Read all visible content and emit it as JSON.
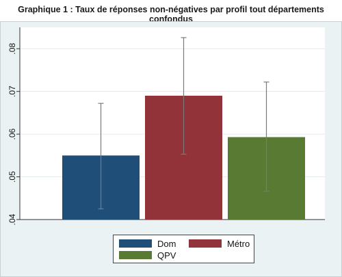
{
  "title": "Graphique 1 : Taux de réponses non-négatives par profil tout départements confondus",
  "chart_data": {
    "type": "bar",
    "title": "Graphique 1 : Taux de réponses non-négatives par profil tout départements confondus",
    "xlabel": "",
    "ylabel": "",
    "ylim": [
      0.04,
      0.085
    ],
    "y_ticks": [
      ".04",
      ".05",
      ".06",
      ".07",
      ".08"
    ],
    "grid": "horizontal",
    "legend_position": "bottom",
    "series": [
      {
        "name": "Dom",
        "value": 0.055,
        "ci": [
          0.0425,
          0.0672
        ],
        "color": "#1f4e79"
      },
      {
        "name": "Métro",
        "value": 0.069,
        "ci": [
          0.0553,
          0.0826
        ],
        "color": "#913338"
      },
      {
        "name": "QPV",
        "value": 0.0593,
        "ci": [
          0.0466,
          0.0722
        ],
        "color": "#587a32"
      }
    ]
  },
  "legend": {
    "items": [
      "Dom",
      "Métro",
      "QPV"
    ]
  }
}
